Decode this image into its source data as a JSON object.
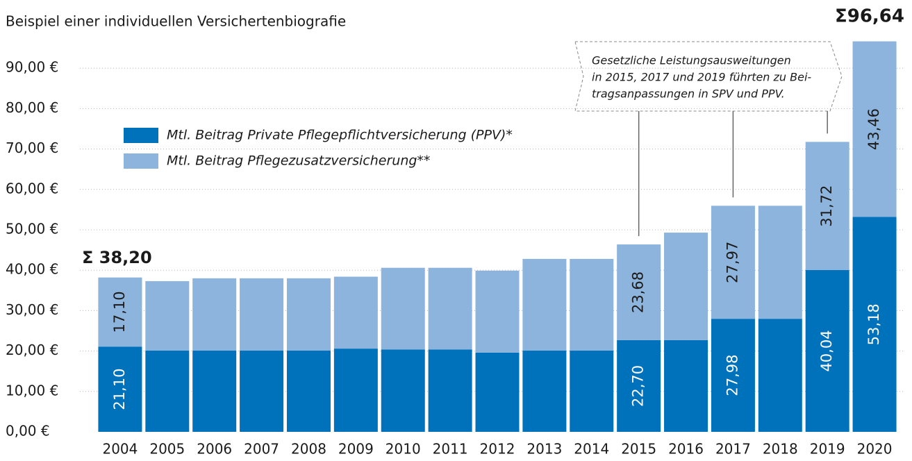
{
  "chart_data": {
    "type": "stacked_bar",
    "subtitle": "Beispiel einer individuellen Versichertenbiografie",
    "categories": [
      "2004",
      "2005",
      "2006",
      "2007",
      "2008",
      "2009",
      "2010",
      "2011",
      "2012",
      "2013",
      "2014",
      "2015",
      "2016",
      "2017",
      "2018",
      "2019",
      "2020"
    ],
    "series": [
      {
        "name": "Mtl. Beitrag Private Pflegepflichtversicherung (PPV)*",
        "color": "#0072bb",
        "values": [
          21.1,
          20.1,
          20.1,
          20.1,
          20.1,
          20.6,
          20.4,
          20.4,
          19.6,
          20.1,
          20.1,
          22.7,
          22.7,
          27.98,
          27.98,
          40.04,
          53.18
        ],
        "value_labels": [
          "21,10",
          null,
          null,
          null,
          null,
          null,
          null,
          null,
          null,
          null,
          null,
          "22,70",
          null,
          "27,98",
          null,
          "40,04",
          "53,18"
        ]
      },
      {
        "name": "Mtl. Beitrag Pflegezusatzversicherung**",
        "color": "#8db4dc",
        "values": [
          17.1,
          17.2,
          17.9,
          17.9,
          17.9,
          17.8,
          20.2,
          20.2,
          20.3,
          22.7,
          22.7,
          23.68,
          26.6,
          27.97,
          27.97,
          31.72,
          43.46
        ],
        "value_labels": [
          "17,10",
          null,
          null,
          null,
          null,
          null,
          null,
          null,
          null,
          null,
          null,
          "23,68",
          null,
          "27,97",
          null,
          "31,72",
          "43,46"
        ]
      }
    ],
    "ylim": [
      0,
      100
    ],
    "yticks": [
      {
        "value": 0,
        "label": "0,00 €"
      },
      {
        "value": 10,
        "label": "10,00 €"
      },
      {
        "value": 20,
        "label": "20,00 €"
      },
      {
        "value": 30,
        "label": "30,00 €"
      },
      {
        "value": 40,
        "label": "40,00 €"
      },
      {
        "value": 50,
        "label": "50,00 €"
      },
      {
        "value": 60,
        "label": "60,00 €"
      },
      {
        "value": 70,
        "label": "70,00 €"
      },
      {
        "value": 80,
        "label": "80,00 €"
      },
      {
        "value": 90,
        "label": "90,00 €"
      }
    ],
    "grid": true,
    "legend": "upper left",
    "annotations": {
      "sum_first": "Σ 38,20",
      "sum_last": "Σ96,64",
      "note": [
        "Gesetzliche Leistungsausweitungen",
        "in 2015, 2017 und 2019 führten zu Bei-",
        "tragsanpassungen in SPV und PPV."
      ]
    }
  }
}
